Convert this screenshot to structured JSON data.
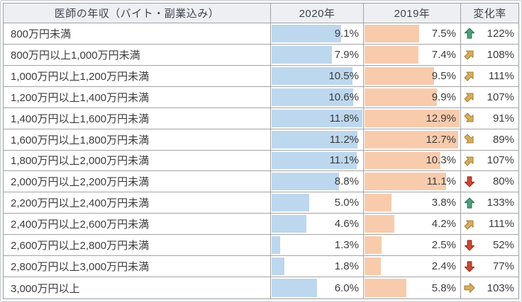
{
  "table": {
    "headers": {
      "category": "医師の年収（バイト・副業込み）",
      "y2020": "2020年",
      "y2019": "2019年",
      "change": "変化率"
    },
    "rows": [
      {
        "label": "800万円未満",
        "v2020": 9.1,
        "d2020": "9.1%",
        "v2019": 7.5,
        "d2019": "7.5%",
        "change": "122%",
        "arrow": "up"
      },
      {
        "label": "800万円以上1,000万円未満",
        "v2020": 7.9,
        "d2020": "7.9%",
        "v2019": 7.4,
        "d2019": "7.4%",
        "change": "108%",
        "arrow": "up-right"
      },
      {
        "label": "1,000万円以上1,200万円未満",
        "v2020": 10.5,
        "d2020": "10.5%",
        "v2019": 9.5,
        "d2019": "9.5%",
        "change": "111%",
        "arrow": "up-right"
      },
      {
        "label": "1,200万円以上1,400万円未満",
        "v2020": 10.6,
        "d2020": "10.6%",
        "v2019": 9.9,
        "d2019": "9.9%",
        "change": "107%",
        "arrow": "up-right"
      },
      {
        "label": "1,400万円以上1,600万円未満",
        "v2020": 11.8,
        "d2020": "11.8%",
        "v2019": 12.9,
        "d2019": "12.9%",
        "change": "91%",
        "arrow": "down-right"
      },
      {
        "label": "1,600万円以上1,800万円未満",
        "v2020": 11.2,
        "d2020": "11.2%",
        "v2019": 12.7,
        "d2019": "12.7%",
        "change": "89%",
        "arrow": "down-right"
      },
      {
        "label": "1,800万円以上2,000万円未満",
        "v2020": 11.1,
        "d2020": "11.1%",
        "v2019": 10.3,
        "d2019": "10.3%",
        "change": "107%",
        "arrow": "up-right"
      },
      {
        "label": "2,000万円以上2,200万円未満",
        "v2020": 8.8,
        "d2020": "8.8%",
        "v2019": 11.1,
        "d2019": "11.1%",
        "change": "80%",
        "arrow": "down"
      },
      {
        "label": "2,200万円以上2,400万円未満",
        "v2020": 5.0,
        "d2020": "5.0%",
        "v2019": 3.8,
        "d2019": "3.8%",
        "change": "133%",
        "arrow": "up"
      },
      {
        "label": "2,400万円以上2,600万円未満",
        "v2020": 4.6,
        "d2020": "4.6%",
        "v2019": 4.2,
        "d2019": "4.2%",
        "change": "111%",
        "arrow": "up-right"
      },
      {
        "label": "2,600万円以上2,800万円未満",
        "v2020": 1.3,
        "d2020": "1.3%",
        "v2019": 2.5,
        "d2019": "2.5%",
        "change": "52%",
        "arrow": "down"
      },
      {
        "label": "2,800万円以上3,000万円未満",
        "v2020": 1.8,
        "d2020": "1.8%",
        "v2019": 2.4,
        "d2019": "2.4%",
        "change": "77%",
        "arrow": "down"
      },
      {
        "label": "3,000万円以上",
        "v2020": 6.0,
        "d2020": "6.0%",
        "v2019": 5.8,
        "d2019": "5.8%",
        "change": "103%",
        "arrow": "right"
      }
    ],
    "bar_max_2020": 11.8,
    "bar_max_2019": 12.9
  },
  "colors": {
    "bar_2020": "#bdd7ee",
    "bar_2019": "#f8cbad",
    "header_bg": "#edeff2",
    "grid_line": "#a3a3a3",
    "arrow_up_fill": "#4f9f79",
    "arrow_up_stroke": "#2e7a58",
    "arrow_mid_fill": "#d9ac5c",
    "arrow_mid_stroke": "#a8873e",
    "arrow_down_fill": "#c84834",
    "arrow_down_stroke": "#9a3323"
  },
  "chart_data": {
    "type": "table",
    "title": "医師の年収（バイト・副業込み）",
    "categories": [
      "800万円未満",
      "800万円以上1,000万円未満",
      "1,000万円以上1,200万円未満",
      "1,200万円以上1,400万円未満",
      "1,400万円以上1,600万円未満",
      "1,600万円以上1,800万円未満",
      "1,800万円以上2,000万円未満",
      "2,000万円以上2,200万円未満",
      "2,200万円以上2,400万円未満",
      "2,400万円以上2,600万円未満",
      "2,600万円以上2,800万円未満",
      "2,800万円以上3,000万円未満",
      "3,000万円以上"
    ],
    "series": [
      {
        "name": "2020年",
        "unit": "%",
        "bar_color": "#bdd7ee",
        "bar_scale_max": 11.8,
        "values": [
          9.1,
          7.9,
          10.5,
          10.6,
          11.8,
          11.2,
          11.1,
          8.8,
          5.0,
          4.6,
          1.3,
          1.8,
          6.0
        ]
      },
      {
        "name": "2019年",
        "unit": "%",
        "bar_color": "#f8cbad",
        "bar_scale_max": 12.9,
        "values": [
          7.5,
          7.4,
          9.5,
          9.9,
          12.9,
          12.7,
          10.3,
          11.1,
          3.8,
          4.2,
          2.5,
          2.4,
          5.8
        ]
      }
    ],
    "change_rate": {
      "name": "変化率",
      "unit": "%",
      "values": [
        122,
        108,
        111,
        107,
        91,
        89,
        107,
        80,
        133,
        111,
        52,
        77,
        103
      ],
      "arrows": [
        "up",
        "up-right",
        "up-right",
        "up-right",
        "down-right",
        "down-right",
        "up-right",
        "down",
        "up",
        "up-right",
        "down",
        "down",
        "right"
      ]
    },
    "layout": {
      "grid": true,
      "bars_in_cells": true,
      "legend_position": "none"
    }
  }
}
